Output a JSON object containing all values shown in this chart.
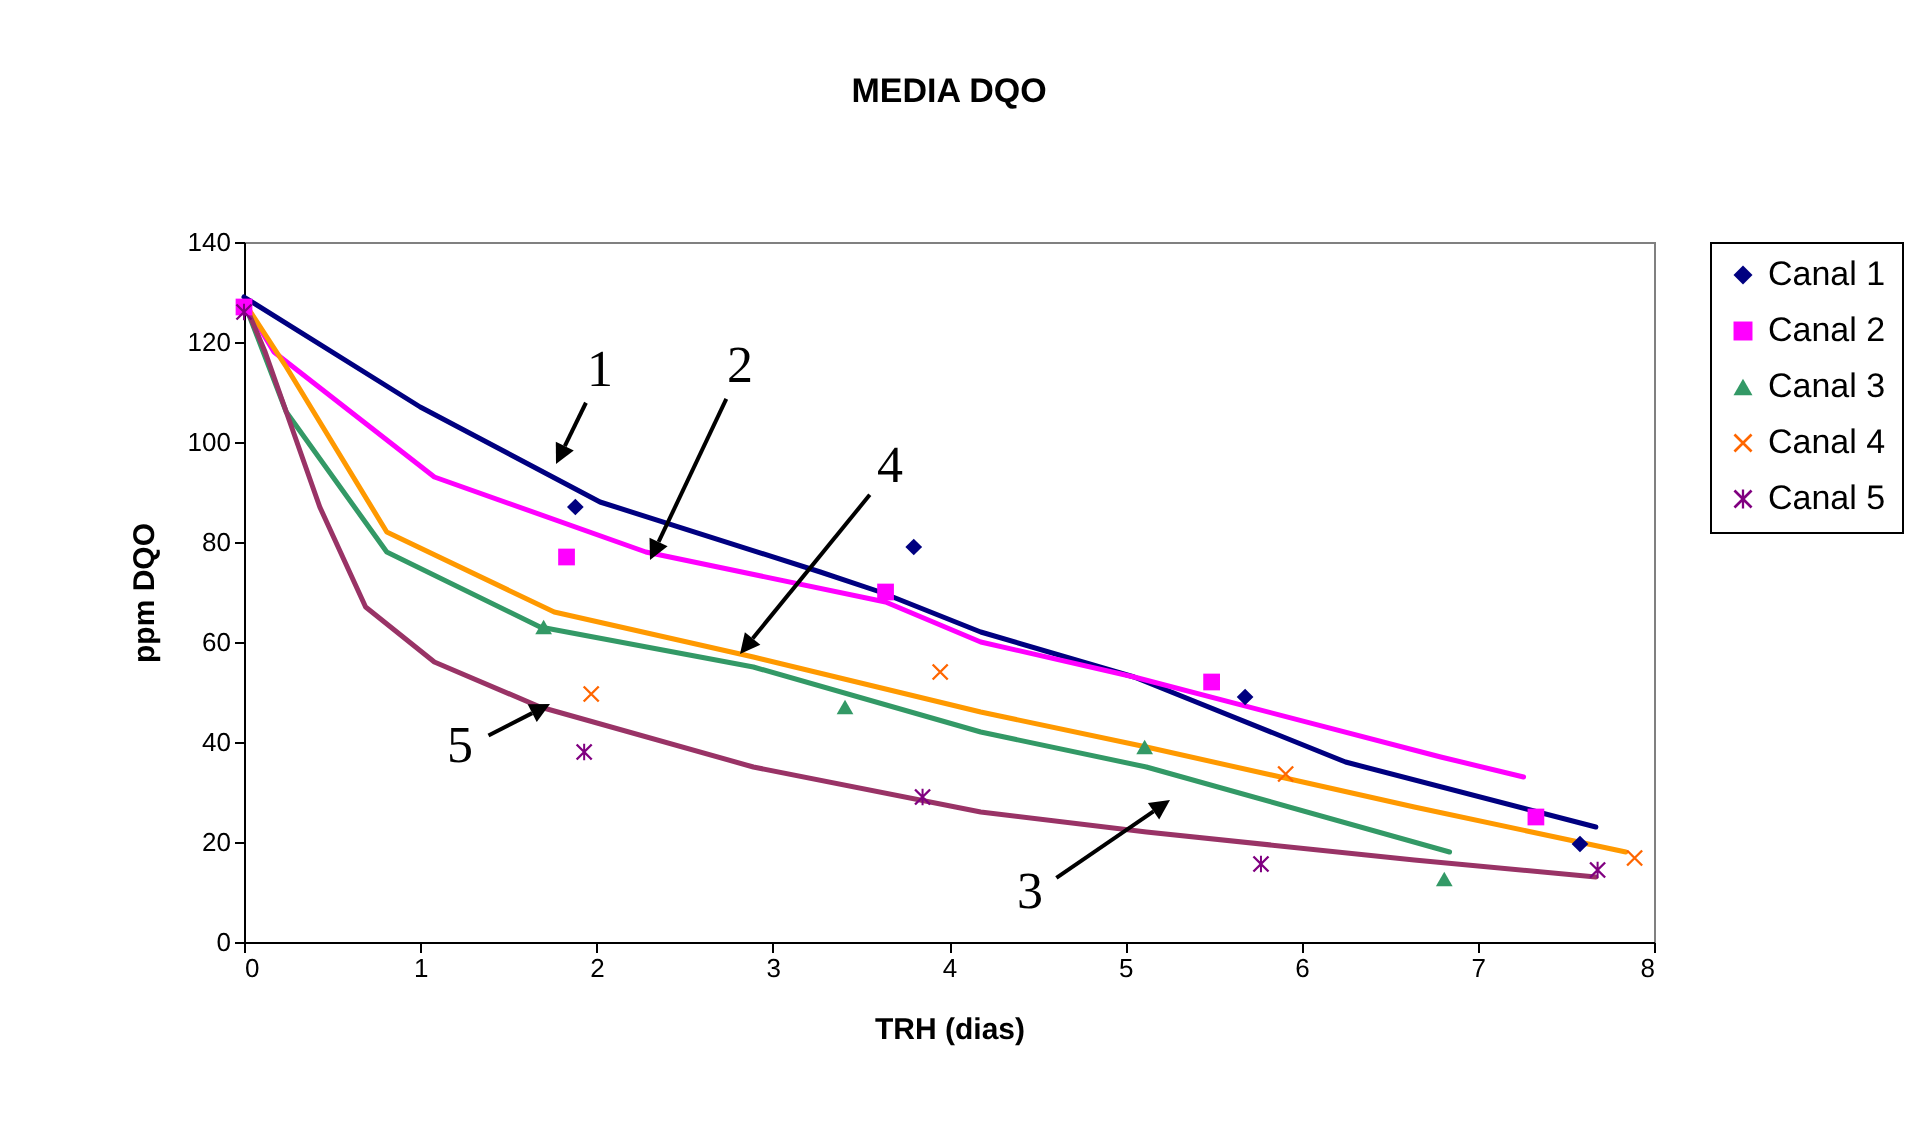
{
  "chart_data": {
    "type": "scatter",
    "title": "MEDIA  DQO",
    "xlabel": "TRH (dias)",
    "ylabel": "ppm DQO",
    "xlim": [
      0,
      8
    ],
    "xticks": [
      0,
      1,
      2,
      3,
      4,
      5,
      6,
      7,
      8
    ],
    "ylim": [
      0,
      140
    ],
    "yticks": [
      0,
      20,
      40,
      60,
      80,
      100,
      120,
      140
    ],
    "grid": false,
    "legend": "right",
    "series": [
      {
        "name": "Canal 1",
        "marker": "diamond",
        "color": "#000080",
        "x": [
          1.88,
          3.8,
          5.68,
          7.58
        ],
        "values": [
          87,
          79,
          49,
          19.6
        ]
      },
      {
        "name": "Canal 2",
        "marker": "square",
        "color": "#ff00ff",
        "x": [
          0,
          1.83,
          3.64,
          5.49,
          7.33
        ],
        "values": [
          127,
          77,
          70,
          52,
          25
        ]
      },
      {
        "name": "Canal 3",
        "marker": "triangle",
        "color": "#339966",
        "x": [
          1.7,
          3.41,
          5.11,
          6.81
        ],
        "values": [
          63,
          47,
          39,
          12.6
        ]
      },
      {
        "name": "Canal 4",
        "marker": "cross",
        "color": "#ff6600",
        "x": [
          1.97,
          3.95,
          5.91,
          7.89
        ],
        "values": [
          49.6,
          54,
          33.6,
          16.8
        ]
      },
      {
        "name": "Canal 5",
        "color": "#800080",
        "x": [
          0,
          1.93,
          3.85,
          5.77,
          7.68
        ],
        "values": [
          126,
          38,
          29,
          15.6,
          14.4
        ]
      },
      {
        "type": "line",
        "color": "#000080",
        "x": [
          0,
          1.0,
          2.02,
          3.27,
          3.61,
          4.18,
          5.05,
          6.25,
          7.67
        ],
        "values": [
          129,
          107,
          88,
          74,
          70,
          62,
          53,
          36,
          23
        ]
      },
      {
        "type": "line",
        "color": "#ff00ff",
        "x": [
          0,
          0.17,
          1.08,
          2.28,
          3.64,
          4.18,
          5.05,
          6.79,
          7.26
        ],
        "values": [
          128,
          118,
          93,
          78,
          68,
          60,
          53,
          37,
          33
        ]
      },
      {
        "type": "line",
        "color": "#339966",
        "x": [
          0,
          0.24,
          0.81,
          1.68,
          2.89,
          4.18,
          5.12,
          6.84
        ],
        "values": [
          128,
          106,
          78,
          63,
          55,
          42,
          35,
          18
        ]
      },
      {
        "type": "line",
        "color": "#ff9900",
        "x": [
          0,
          0.24,
          0.81,
          1.76,
          2.89,
          4.18,
          5.12,
          6.64,
          7.84
        ],
        "values": [
          128,
          115,
          82,
          66,
          57,
          46,
          39,
          27,
          18
        ]
      },
      {
        "type": "line",
        "color": "#993366",
        "x": [
          0,
          0.12,
          0.43,
          0.69,
          1.08,
          1.68,
          2.89,
          4.18,
          5.12,
          6.64,
          7.67
        ],
        "values": [
          128,
          118,
          87,
          67,
          56,
          47,
          35,
          26,
          22,
          16.4,
          13
        ]
      }
    ],
    "annotations": [
      "1",
      "2",
      "3",
      "4",
      "5"
    ]
  }
}
